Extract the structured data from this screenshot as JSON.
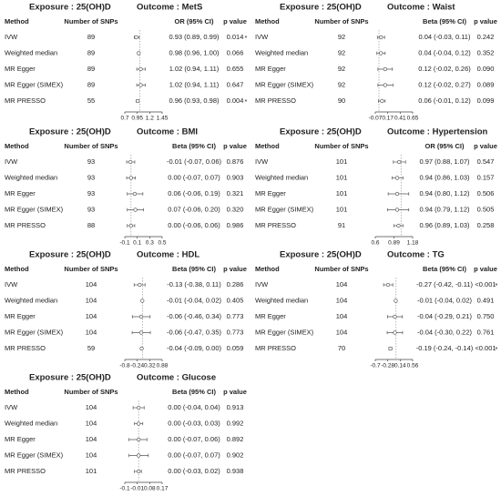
{
  "chart_data": [
    {
      "type": "forest",
      "exposure": "Exposure : 25(OH)D",
      "outcome": "Outcome : MetS",
      "columns": [
        "Method",
        "Number of SNPs",
        "OR (95% CI)",
        "p value"
      ],
      "ref": 1,
      "xlim": [
        0.7,
        1.45
      ],
      "xticks": [
        0.7,
        0.95,
        1.2,
        1.45
      ],
      "rows": [
        {
          "method": "IVW",
          "snps": 89,
          "estimate": 0.93,
          "lower": 0.89,
          "upper": 0.99,
          "ci_label": "0.93 (0.89, 0.99)",
          "p": "0.014",
          "sig": "*"
        },
        {
          "method": "Weighted median",
          "snps": 89,
          "estimate": 0.98,
          "lower": 0.96,
          "upper": 1.0,
          "ci_label": "0.98 (0.96, 1.00)",
          "p": "0.066"
        },
        {
          "method": "MR Egger",
          "snps": 89,
          "estimate": 1.02,
          "lower": 0.94,
          "upper": 1.11,
          "ci_label": "1.02 (0.94, 1.11)",
          "p": "0.655"
        },
        {
          "method": "MR Egger (SIMEX)",
          "snps": 89,
          "estimate": 1.02,
          "lower": 0.94,
          "upper": 1.11,
          "ci_label": "1.02 (0.94, 1.11)",
          "p": "0.647"
        },
        {
          "method": "MR PRESSO",
          "snps": 55,
          "estimate": 0.96,
          "lower": 0.93,
          "upper": 0.98,
          "ci_label": "0.96 (0.93, 0.98)",
          "p": "0.004",
          "sig": "*"
        }
      ]
    },
    {
      "type": "forest",
      "exposure": "Exposure : 25(OH)D",
      "outcome": "Outcome : Waist",
      "columns": [
        "Method",
        "Number of SNPs",
        "Beta (95% CI)",
        "p value"
      ],
      "ref": 0,
      "xlim": [
        -0.07,
        0.65
      ],
      "xticks": [
        -0.07,
        0.17,
        0.41,
        0.65
      ],
      "rows": [
        {
          "method": "IVW",
          "snps": 92,
          "estimate": 0.04,
          "lower": -0.03,
          "upper": 0.11,
          "ci_label": "0.04 (-0.03, 0.11)",
          "p": "0.242"
        },
        {
          "method": "Weighted median",
          "snps": 92,
          "estimate": 0.04,
          "lower": -0.04,
          "upper": 0.12,
          "ci_label": "0.04 (-0.04, 0.12)",
          "p": "0.352"
        },
        {
          "method": "MR Egger",
          "snps": 92,
          "estimate": 0.12,
          "lower": -0.02,
          "upper": 0.26,
          "ci_label": "0.12 (-0.02, 0.26)",
          "p": "0.090"
        },
        {
          "method": "MR Egger (SIMEX)",
          "snps": 92,
          "estimate": 0.12,
          "lower": -0.02,
          "upper": 0.27,
          "ci_label": "0.12 (-0.02, 0.27)",
          "p": "0.089"
        },
        {
          "method": "MR PRESSO",
          "snps": 90,
          "estimate": 0.06,
          "lower": -0.01,
          "upper": 0.12,
          "ci_label": "0.06 (-0.01, 0.12)",
          "p": "0.099"
        }
      ]
    },
    {
      "type": "forest",
      "exposure": "Exposure : 25(OH)D",
      "outcome": "Outcome : BMI",
      "columns": [
        "Method",
        "Number of SNPs",
        "Beta (95% CI)",
        "p value"
      ],
      "ref": 0,
      "xlim": [
        -0.1,
        0.5
      ],
      "xticks": [
        -0.1,
        0.1,
        0.3,
        0.5
      ],
      "rows": [
        {
          "method": "IVW",
          "snps": 93,
          "estimate": -0.01,
          "lower": -0.07,
          "upper": 0.06,
          "ci_label": "-0.01 (-0.07, 0.06)",
          "p": "0.876"
        },
        {
          "method": "Weighted median",
          "snps": 93,
          "estimate": 0.0,
          "lower": -0.07,
          "upper": 0.07,
          "ci_label": "0.00 (-0.07, 0.07)",
          "p": "0.903"
        },
        {
          "method": "MR Egger",
          "snps": 93,
          "estimate": 0.06,
          "lower": -0.06,
          "upper": 0.19,
          "ci_label": "0.06 (-0.06, 0.19)",
          "p": "0.321"
        },
        {
          "method": "MR Egger (SIMEX)",
          "snps": 93,
          "estimate": 0.07,
          "lower": -0.06,
          "upper": 0.2,
          "ci_label": "0.07 (-0.06, 0.20)",
          "p": "0.320"
        },
        {
          "method": "MR PRESSO",
          "snps": 88,
          "estimate": 0.0,
          "lower": -0.06,
          "upper": 0.06,
          "ci_label": "0.00 (-0.06, 0.06)",
          "p": "0.986"
        }
      ]
    },
    {
      "type": "forest",
      "exposure": "Exposure : 25(OH)D",
      "outcome": "Outcome : Hypertension",
      "columns": [
        "Method",
        "Number of SNPs",
        "OR (95% CI)",
        "p value"
      ],
      "ref": 1,
      "xlim": [
        0.6,
        1.18
      ],
      "xticks": [
        0.6,
        0.89,
        1.18
      ],
      "rows": [
        {
          "method": "IVW",
          "snps": 101,
          "estimate": 0.97,
          "lower": 0.88,
          "upper": 1.07,
          "ci_label": "0.97 (0.88, 1.07)",
          "p": "0.547"
        },
        {
          "method": "Weighted median",
          "snps": 101,
          "estimate": 0.94,
          "lower": 0.86,
          "upper": 1.03,
          "ci_label": "0.94 (0.86, 1.03)",
          "p": "0.157"
        },
        {
          "method": "MR Egger",
          "snps": 101,
          "estimate": 0.94,
          "lower": 0.8,
          "upper": 1.12,
          "ci_label": "0.94 (0.80, 1.12)",
          "p": "0.506"
        },
        {
          "method": "MR Egger (SIMEX)",
          "snps": 101,
          "estimate": 0.94,
          "lower": 0.79,
          "upper": 1.12,
          "ci_label": "0.94 (0.79, 1.12)",
          "p": "0.505"
        },
        {
          "method": "MR PRESSO",
          "snps": 91,
          "estimate": 0.96,
          "lower": 0.89,
          "upper": 1.03,
          "ci_label": "0.96 (0.89, 1.03)",
          "p": "0.258"
        }
      ]
    },
    {
      "type": "forest",
      "exposure": "Exposure : 25(OH)D",
      "outcome": "Outcome : HDL",
      "columns": [
        "Method",
        "Number of SNPs",
        "Beta (95% CI)",
        "p value"
      ],
      "ref": 0,
      "xlim": [
        -0.8,
        0.88
      ],
      "xticks": [
        -0.8,
        -0.24,
        0.32,
        0.88
      ],
      "rows": [
        {
          "method": "IVW",
          "snps": 104,
          "estimate": -0.13,
          "lower": -0.38,
          "upper": 0.11,
          "ci_label": "-0.13 (-0.38, 0.11)",
          "p": "0.286"
        },
        {
          "method": "Weighted median",
          "snps": 104,
          "estimate": -0.01,
          "lower": -0.04,
          "upper": 0.02,
          "ci_label": "-0.01 (-0.04, 0.02)",
          "p": "0.405"
        },
        {
          "method": "MR Egger",
          "snps": 104,
          "estimate": -0.06,
          "lower": -0.46,
          "upper": 0.34,
          "ci_label": "-0.06 (-0.46, 0.34)",
          "p": "0.773"
        },
        {
          "method": "MR Egger (SIMEX)",
          "snps": 104,
          "estimate": -0.06,
          "lower": -0.47,
          "upper": 0.35,
          "ci_label": "-0.06 (-0.47, 0.35)",
          "p": "0.773"
        },
        {
          "method": "MR PRESSO",
          "snps": 59,
          "estimate": -0.04,
          "lower": -0.09,
          "upper": 0.0,
          "ci_label": "-0.04 (-0.09, 0.00)",
          "p": "0.059"
        }
      ]
    },
    {
      "type": "forest",
      "exposure": "Exposure : 25(OH)D",
      "outcome": "Outcome : TG",
      "columns": [
        "Method",
        "Number of SNPs",
        "Beta (95% CI)",
        "p value"
      ],
      "ref": 0,
      "xlim": [
        -0.7,
        0.56
      ],
      "xticks": [
        -0.7,
        -0.28,
        0.14,
        0.56
      ],
      "rows": [
        {
          "method": "IVW",
          "snps": 104,
          "estimate": -0.27,
          "lower": -0.42,
          "upper": -0.11,
          "ci_label": "-0.27 (-0.42, -0.11)",
          "p": "<0.001",
          "sig": "*"
        },
        {
          "method": "Weighted median",
          "snps": 104,
          "estimate": -0.01,
          "lower": -0.04,
          "upper": 0.02,
          "ci_label": "-0.01 (-0.04, 0.02)",
          "p": "0.491"
        },
        {
          "method": "MR Egger",
          "snps": 104,
          "estimate": -0.04,
          "lower": -0.29,
          "upper": 0.21,
          "ci_label": "-0.04 (-0.29, 0.21)",
          "p": "0.750"
        },
        {
          "method": "MR Egger (SIMEX)",
          "snps": 104,
          "estimate": -0.04,
          "lower": -0.3,
          "upper": 0.22,
          "ci_label": "-0.04 (-0.30, 0.22)",
          "p": "0.761"
        },
        {
          "method": "MR PRESSO",
          "snps": 70,
          "estimate": -0.19,
          "lower": -0.24,
          "upper": -0.14,
          "ci_label": "-0.19 (-0.24, -0.14)",
          "p": "<0.001",
          "sig": "*"
        }
      ]
    },
    {
      "type": "forest",
      "exposure": "Exposure : 25(OH)D",
      "outcome": "Outcome : Glucose",
      "columns": [
        "Method",
        "Number of SNPs",
        "Beta (95% CI)",
        "p value"
      ],
      "ref": 0,
      "xlim": [
        -0.1,
        0.17
      ],
      "xticks": [
        -0.1,
        -0.01,
        0.08,
        0.17
      ],
      "rows": [
        {
          "method": "IVW",
          "snps": 104,
          "estimate": 0.0,
          "lower": -0.04,
          "upper": 0.04,
          "ci_label": "0.00 (-0.04, 0.04)",
          "p": "0.913"
        },
        {
          "method": "Weighted median",
          "snps": 104,
          "estimate": 0.0,
          "lower": -0.03,
          "upper": 0.03,
          "ci_label": "0.00 (-0.03, 0.03)",
          "p": "0.992"
        },
        {
          "method": "MR Egger",
          "snps": 104,
          "estimate": 0.0,
          "lower": -0.07,
          "upper": 0.06,
          "ci_label": "0.00 (-0.07, 0.06)",
          "p": "0.892"
        },
        {
          "method": "MR Egger (SIMEX)",
          "snps": 104,
          "estimate": 0.0,
          "lower": -0.07,
          "upper": 0.07,
          "ci_label": "0.00 (-0.07, 0.07)",
          "p": "0.902"
        },
        {
          "method": "MR PRESSO",
          "snps": 101,
          "estimate": 0.0,
          "lower": -0.03,
          "upper": 0.02,
          "ci_label": "0.00 (-0.03, 0.02)",
          "p": "0.938"
        }
      ]
    }
  ]
}
